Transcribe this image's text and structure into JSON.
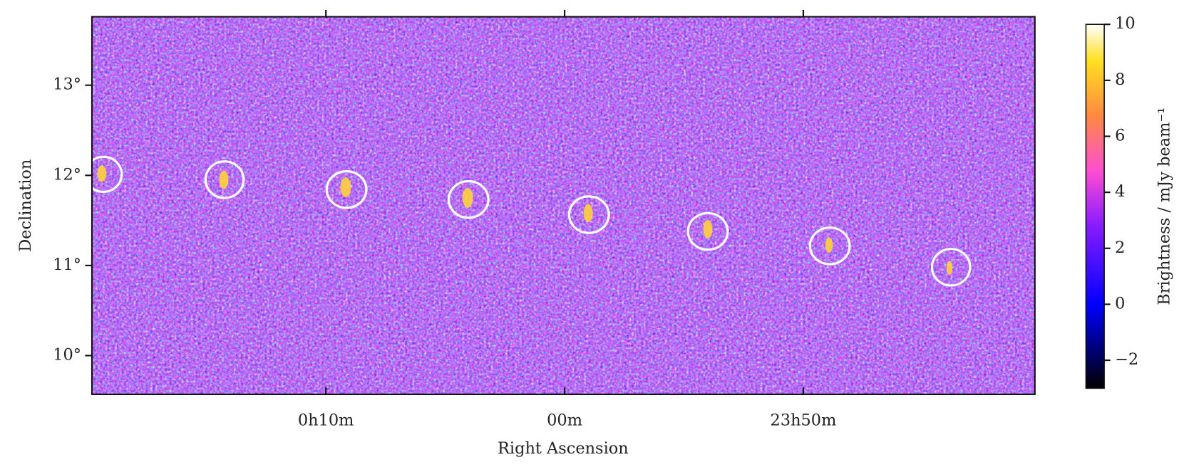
{
  "chart_data": {
    "type": "image",
    "x_label": "Right Ascension",
    "y_label": "Declination",
    "xlim": [
      19.8,
      -19.7
    ],
    "xticks": [
      {
        "value": 10,
        "label": "0h10m"
      },
      {
        "value": 0,
        "label": "00m"
      },
      {
        "value": -10,
        "label": "23h50m"
      }
    ],
    "ylim": [
      9.57,
      13.76
    ],
    "yticks": [
      {
        "value": 10,
        "label": "10°"
      },
      {
        "value": 11,
        "label": "11°"
      },
      {
        "value": 12,
        "label": "12°"
      },
      {
        "value": 13,
        "label": "13°"
      }
    ],
    "colorbar": {
      "label": "Brightness / mJy beam⁻¹",
      "lim": [
        -3,
        10
      ],
      "ticks": [
        {
          "value": -2,
          "label": "−2"
        },
        0,
        2,
        4,
        6,
        8,
        10
      ]
    }
  }
}
